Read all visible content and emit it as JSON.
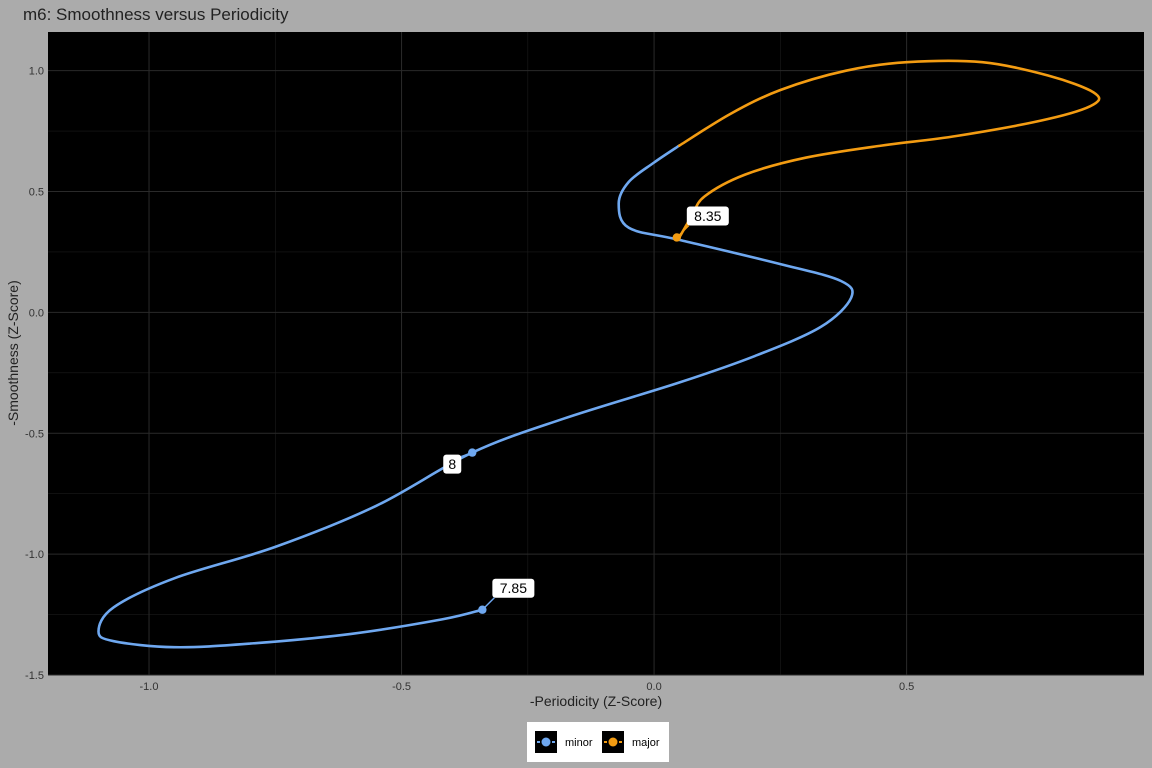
{
  "chart_data": {
    "type": "line",
    "title": "m6: Smoothness versus Periodicity",
    "xlabel": "-Periodicity (Z-Score)",
    "ylabel": "-Smoothness (Z-Score)",
    "xlim": [
      -1.2,
      0.97
    ],
    "ylim": [
      -1.5,
      1.16
    ],
    "x_ticks": [
      -1.0,
      -0.5,
      0.0,
      0.5
    ],
    "x_tick_labels": [
      "-1.0",
      "-0.5",
      "0.0",
      "0.5"
    ],
    "y_ticks": [
      -1.5,
      -1.0,
      -0.5,
      0.0,
      0.5,
      1.0
    ],
    "y_tick_labels": [
      "-1.5",
      "-1.0",
      "-0.5",
      "0.0",
      "0.5",
      "1.0"
    ],
    "grid": true,
    "legend_position": "bottom",
    "series": [
      {
        "name": "minor",
        "color": "#6fa8f0",
        "points": [
          [
            -0.34,
            -1.23
          ],
          [
            -0.42,
            -1.27
          ],
          [
            -0.6,
            -1.33
          ],
          [
            -0.8,
            -1.37
          ],
          [
            -0.95,
            -1.385
          ],
          [
            -1.07,
            -1.36
          ],
          [
            -1.1,
            -1.32
          ],
          [
            -1.07,
            -1.22
          ],
          [
            -0.95,
            -1.1
          ],
          [
            -0.75,
            -0.97
          ],
          [
            -0.55,
            -0.8
          ],
          [
            -0.36,
            -0.58
          ],
          [
            -0.18,
            -0.44
          ],
          [
            0.05,
            -0.29
          ],
          [
            0.2,
            -0.18
          ],
          [
            0.33,
            -0.06
          ],
          [
            0.39,
            0.06
          ],
          [
            0.37,
            0.13
          ],
          [
            0.25,
            0.2
          ],
          [
            0.05,
            0.3
          ],
          [
            -0.05,
            0.35
          ],
          [
            -0.07,
            0.45
          ],
          [
            -0.05,
            0.54
          ],
          [
            0.0,
            0.62
          ],
          [
            0.05,
            0.69
          ]
        ]
      },
      {
        "name": "major",
        "color": "#f39c12",
        "points": [
          [
            0.05,
            0.69
          ],
          [
            0.15,
            0.82
          ],
          [
            0.25,
            0.92
          ],
          [
            0.38,
            1.0
          ],
          [
            0.5,
            1.035
          ],
          [
            0.65,
            1.035
          ],
          [
            0.78,
            0.98
          ],
          [
            0.87,
            0.91
          ],
          [
            0.87,
            0.86
          ],
          [
            0.78,
            0.8
          ],
          [
            0.6,
            0.73
          ],
          [
            0.45,
            0.69
          ],
          [
            0.3,
            0.64
          ],
          [
            0.18,
            0.57
          ],
          [
            0.1,
            0.48
          ],
          [
            0.075,
            0.4
          ],
          [
            0.05,
            0.31
          ]
        ]
      }
    ],
    "markers": [
      {
        "series": "minor",
        "x": -0.34,
        "y": -1.23,
        "label": "7.85",
        "side": "right"
      },
      {
        "series": "minor",
        "x": -0.36,
        "y": -0.58,
        "label": "8",
        "side": "left"
      },
      {
        "series": "major",
        "x": 0.045,
        "y": 0.31,
        "label": "8.35",
        "side": "right"
      }
    ]
  }
}
